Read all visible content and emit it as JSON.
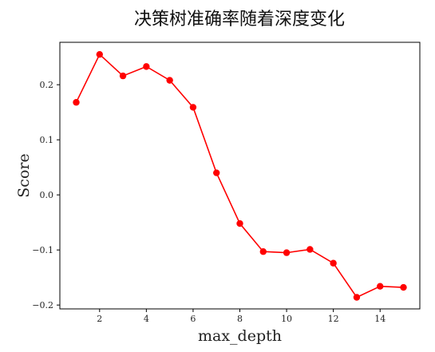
{
  "chart_data": {
    "type": "line",
    "title": "决策树准确率随着深度变化",
    "xlabel": "max_depth",
    "ylabel": "Score",
    "x": [
      1,
      2,
      3,
      4,
      5,
      6,
      7,
      8,
      9,
      10,
      11,
      12,
      13,
      14,
      15
    ],
    "series": [
      {
        "values": [
          0.168,
          0.255,
          0.216,
          0.233,
          0.208,
          0.159,
          0.04,
          -0.052,
          -0.103,
          -0.105,
          -0.099,
          -0.124,
          -0.186,
          -0.166,
          -0.168
        ],
        "color": "#ff0000",
        "marker": "circle"
      }
    ],
    "xticks": [
      2,
      4,
      6,
      8,
      10,
      12,
      14
    ],
    "yticks": [
      -0.2,
      -0.1,
      0.0,
      0.1,
      0.2
    ],
    "xtick_labels": [
      "2",
      "4",
      "6",
      "8",
      "10",
      "12",
      "14"
    ],
    "ytick_labels": [
      "−0.2",
      "−0.1",
      "0.0",
      "0.1",
      "0.2"
    ],
    "xlim": [
      0.3,
      15.7
    ],
    "ylim": [
      -0.207,
      0.277
    ],
    "grid": false
  }
}
